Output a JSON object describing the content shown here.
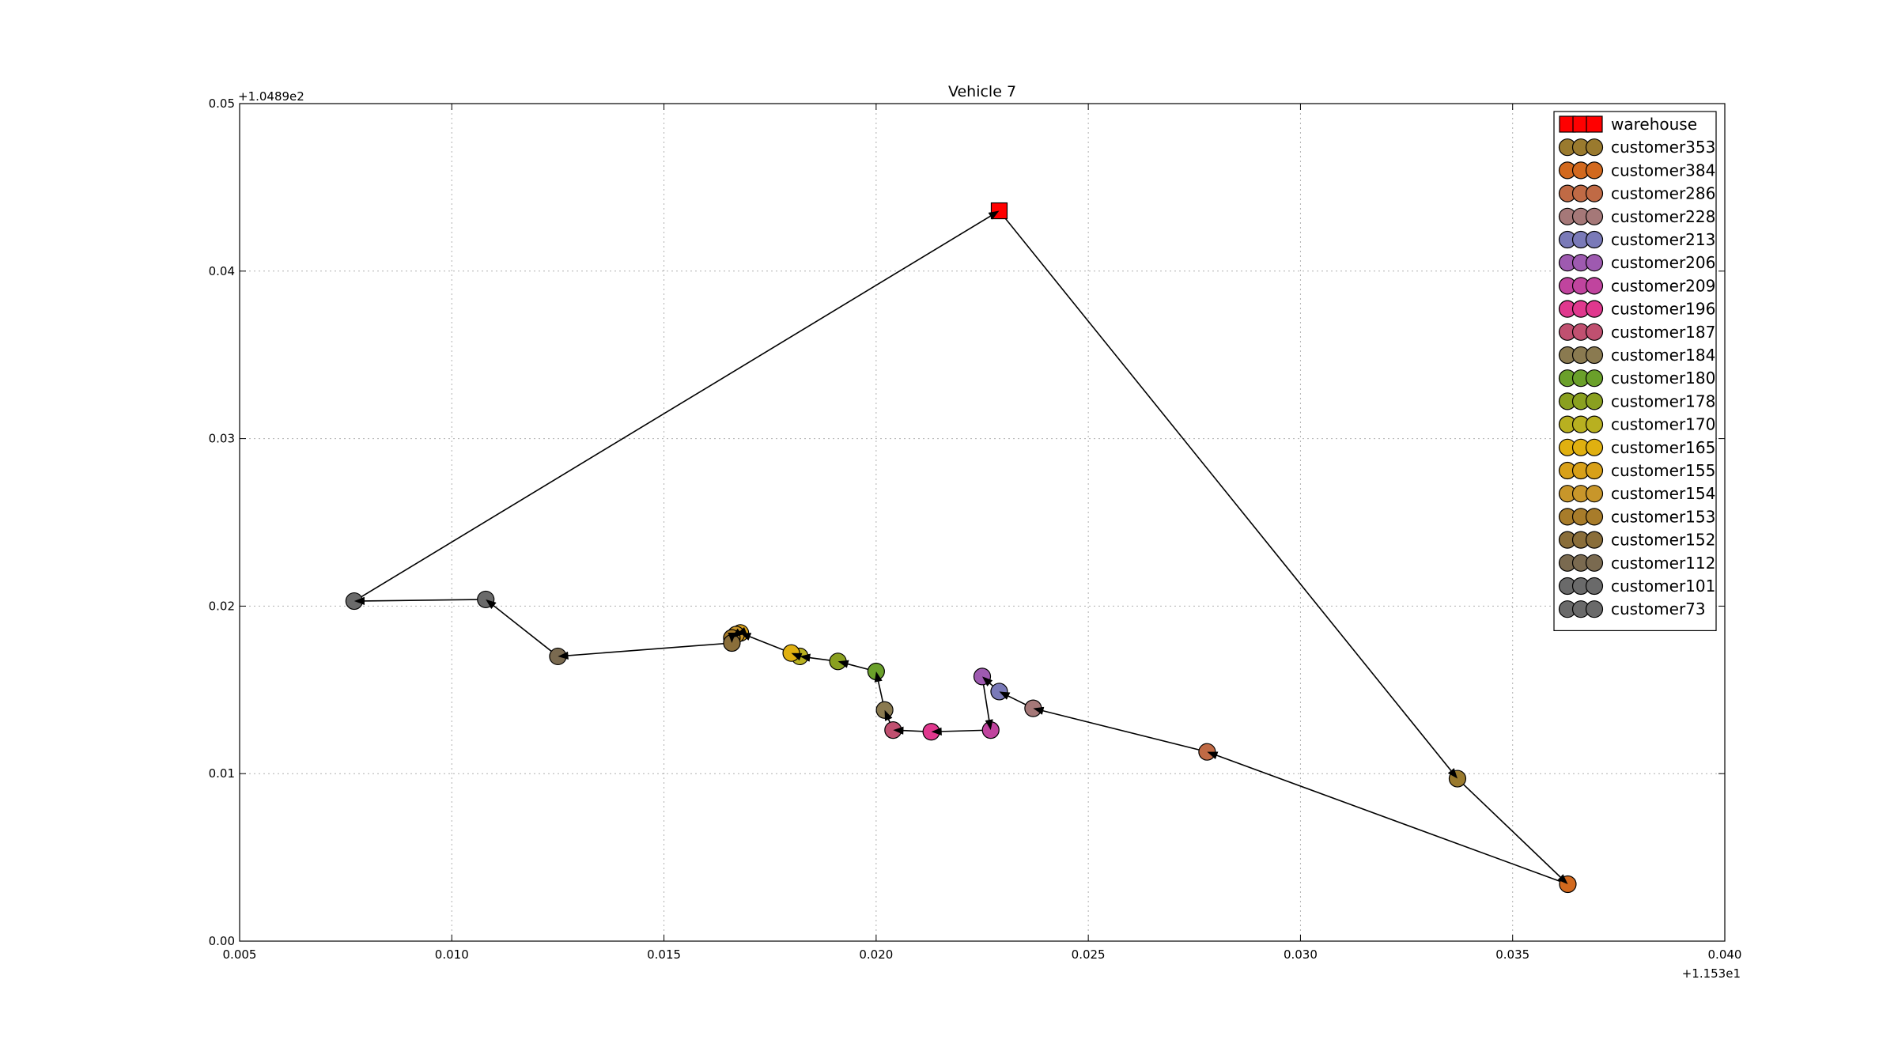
{
  "chart_data": {
    "type": "line",
    "title": "Vehicle 7",
    "xlabel": "",
    "ylabel": "",
    "x_offset_label": "+1.153e1",
    "y_offset_label": "+1.0489e2",
    "xlim": [
      0.005,
      0.04
    ],
    "ylim": [
      0.0,
      0.05
    ],
    "x_ticks": [
      "0.005",
      "0.010",
      "0.015",
      "0.020",
      "0.025",
      "0.030",
      "0.035",
      "0.040"
    ],
    "y_ticks": [
      "0.00",
      "0.01",
      "0.02",
      "0.03",
      "0.04",
      "0.05"
    ],
    "grid": true,
    "legend_position": "top-right",
    "route": [
      {
        "name": "warehouse",
        "x": 0.0229,
        "y": 0.0436
      },
      {
        "name": "customer353",
        "x": 0.0337,
        "y": 0.0097
      },
      {
        "name": "customer384",
        "x": 0.0363,
        "y": 0.0034
      },
      {
        "name": "customer286",
        "x": 0.0278,
        "y": 0.0113
      },
      {
        "name": "customer228",
        "x": 0.0237,
        "y": 0.0139
      },
      {
        "name": "customer213",
        "x": 0.0229,
        "y": 0.0149
      },
      {
        "name": "customer206",
        "x": 0.0225,
        "y": 0.0158
      },
      {
        "name": "customer209",
        "x": 0.0227,
        "y": 0.0126
      },
      {
        "name": "customer196",
        "x": 0.0213,
        "y": 0.0125
      },
      {
        "name": "customer187",
        "x": 0.0204,
        "y": 0.0126
      },
      {
        "name": "customer184",
        "x": 0.0202,
        "y": 0.0138
      },
      {
        "name": "customer180",
        "x": 0.02,
        "y": 0.0161
      },
      {
        "name": "customer178",
        "x": 0.0191,
        "y": 0.0167
      },
      {
        "name": "customer170",
        "x": 0.0182,
        "y": 0.017
      },
      {
        "name": "customer165",
        "x": 0.018,
        "y": 0.0172
      },
      {
        "name": "customer155",
        "x": 0.0168,
        "y": 0.0184
      },
      {
        "name": "customer154",
        "x": 0.0167,
        "y": 0.0183
      },
      {
        "name": "customer153",
        "x": 0.0166,
        "y": 0.0181
      },
      {
        "name": "customer152",
        "x": 0.0166,
        "y": 0.0178
      },
      {
        "name": "customer112",
        "x": 0.0125,
        "y": 0.017
      },
      {
        "name": "customer101",
        "x": 0.0108,
        "y": 0.0204
      },
      {
        "name": "customer73",
        "x": 0.0077,
        "y": 0.0203
      },
      {
        "name": "warehouse",
        "x": 0.0229,
        "y": 0.0436
      }
    ],
    "legend": [
      {
        "name": "warehouse",
        "color": "#ff0000",
        "marker": "square"
      },
      {
        "name": "customer353",
        "color": "#9a7a2e",
        "marker": "circle"
      },
      {
        "name": "customer384",
        "color": "#d2691e",
        "marker": "circle"
      },
      {
        "name": "customer286",
        "color": "#c06a45",
        "marker": "circle"
      },
      {
        "name": "customer228",
        "color": "#a57878",
        "marker": "circle"
      },
      {
        "name": "customer213",
        "color": "#7a7ab8",
        "marker": "circle"
      },
      {
        "name": "customer206",
        "color": "#9e5ab0",
        "marker": "circle"
      },
      {
        "name": "customer209",
        "color": "#c0449e",
        "marker": "circle"
      },
      {
        "name": "customer196",
        "color": "#e0388e",
        "marker": "circle"
      },
      {
        "name": "customer187",
        "color": "#c05070",
        "marker": "circle"
      },
      {
        "name": "customer184",
        "color": "#8a7a50",
        "marker": "circle"
      },
      {
        "name": "customer180",
        "color": "#6aa02a",
        "marker": "circle"
      },
      {
        "name": "customer178",
        "color": "#8aa020",
        "marker": "circle"
      },
      {
        "name": "customer170",
        "color": "#b8b020",
        "marker": "circle"
      },
      {
        "name": "customer165",
        "color": "#e0b010",
        "marker": "circle"
      },
      {
        "name": "customer155",
        "color": "#d8a018",
        "marker": "circle"
      },
      {
        "name": "customer154",
        "color": "#c8962a",
        "marker": "circle"
      },
      {
        "name": "customer153",
        "color": "#a87c2a",
        "marker": "circle"
      },
      {
        "name": "customer152",
        "color": "#8a6e3a",
        "marker": "circle"
      },
      {
        "name": "customer112",
        "color": "#7a6a50",
        "marker": "circle"
      },
      {
        "name": "customer101",
        "color": "#6a6a6a",
        "marker": "circle"
      },
      {
        "name": "customer73",
        "color": "#6a6a6a",
        "marker": "circle"
      }
    ]
  }
}
